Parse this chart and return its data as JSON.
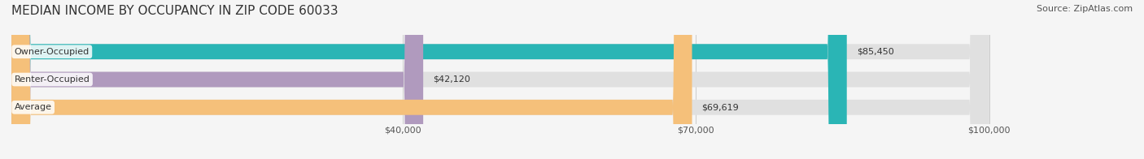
{
  "title": "MEDIAN INCOME BY OCCUPANCY IN ZIP CODE 60033",
  "source": "Source: ZipAtlas.com",
  "categories": [
    "Owner-Occupied",
    "Renter-Occupied",
    "Average"
  ],
  "values": [
    85450,
    42120,
    69619
  ],
  "labels": [
    "$85,450",
    "$42,120",
    "$69,619"
  ],
  "bar_colors": [
    "#2ab5b5",
    "#b09abe",
    "#f5c07a"
  ],
  "bar_bg_color": "#e0e0e0",
  "xmin": 0,
  "xmax": 100000,
  "xticks": [
    40000,
    70000,
    100000
  ],
  "xtick_labels": [
    "$40,000",
    "$70,000",
    "$100,000"
  ],
  "title_fontsize": 11,
  "source_fontsize": 8,
  "label_fontsize": 8,
  "tick_fontsize": 8,
  "bar_label_fontsize": 8
}
